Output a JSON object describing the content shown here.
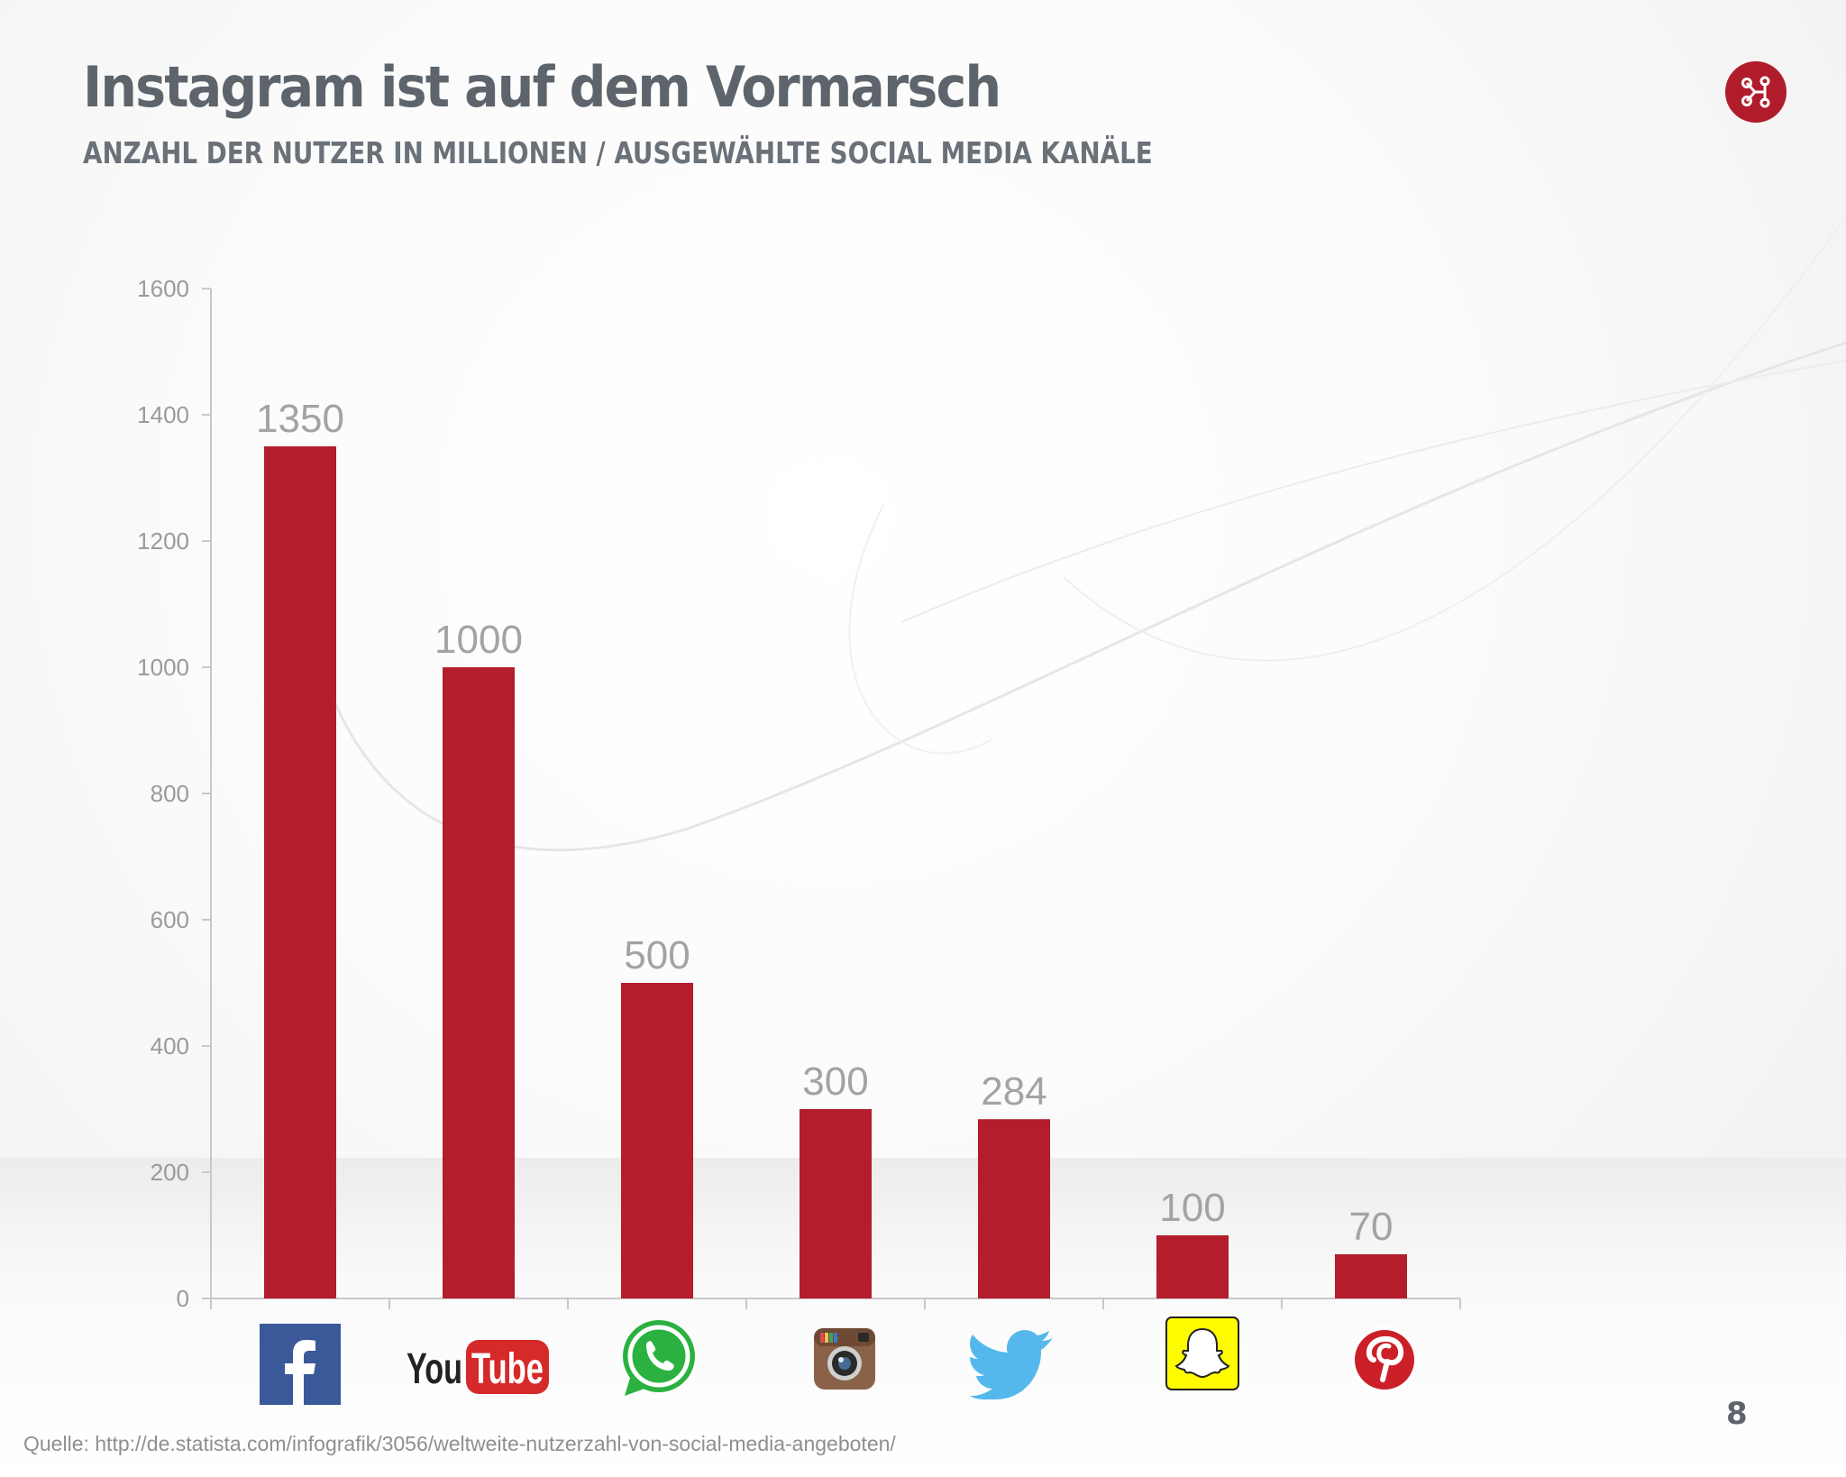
{
  "header": {
    "title": "Instagram ist auf dem Vormarsch",
    "subtitle": "ANZAHL DER NUTZER IN MILLIONEN / AUSGEWÄHLTE SOCIAL MEDIA KANÄLE"
  },
  "logo_icon": "network-share-icon",
  "colors": {
    "bar": "#b31d2c",
    "accent": "#b01c2b",
    "title": "#5d646b"
  },
  "chart_data": {
    "type": "bar",
    "categories": [
      "Facebook",
      "YouTube",
      "WhatsApp",
      "Instagram",
      "Twitter",
      "Snapchat",
      "Pinterest"
    ],
    "category_icons": [
      "facebook-logo-icon",
      "youtube-logo-icon",
      "whatsapp-logo-icon",
      "instagram-logo-icon",
      "twitter-logo-icon",
      "snapchat-logo-icon",
      "pinterest-logo-icon"
    ],
    "values": [
      1350,
      1000,
      500,
      300,
      284,
      100,
      70
    ],
    "y_ticks": [
      0,
      200,
      400,
      600,
      800,
      1000,
      1200,
      1400,
      1600
    ],
    "ylim": [
      0,
      1600
    ],
    "grid": false,
    "data_labels": true
  },
  "footer": {
    "source": "Quelle: http://de.statista.com/infografik/3056/weltweite-nutzerzahl-von-social-media-angeboten/",
    "page_number": "8"
  }
}
